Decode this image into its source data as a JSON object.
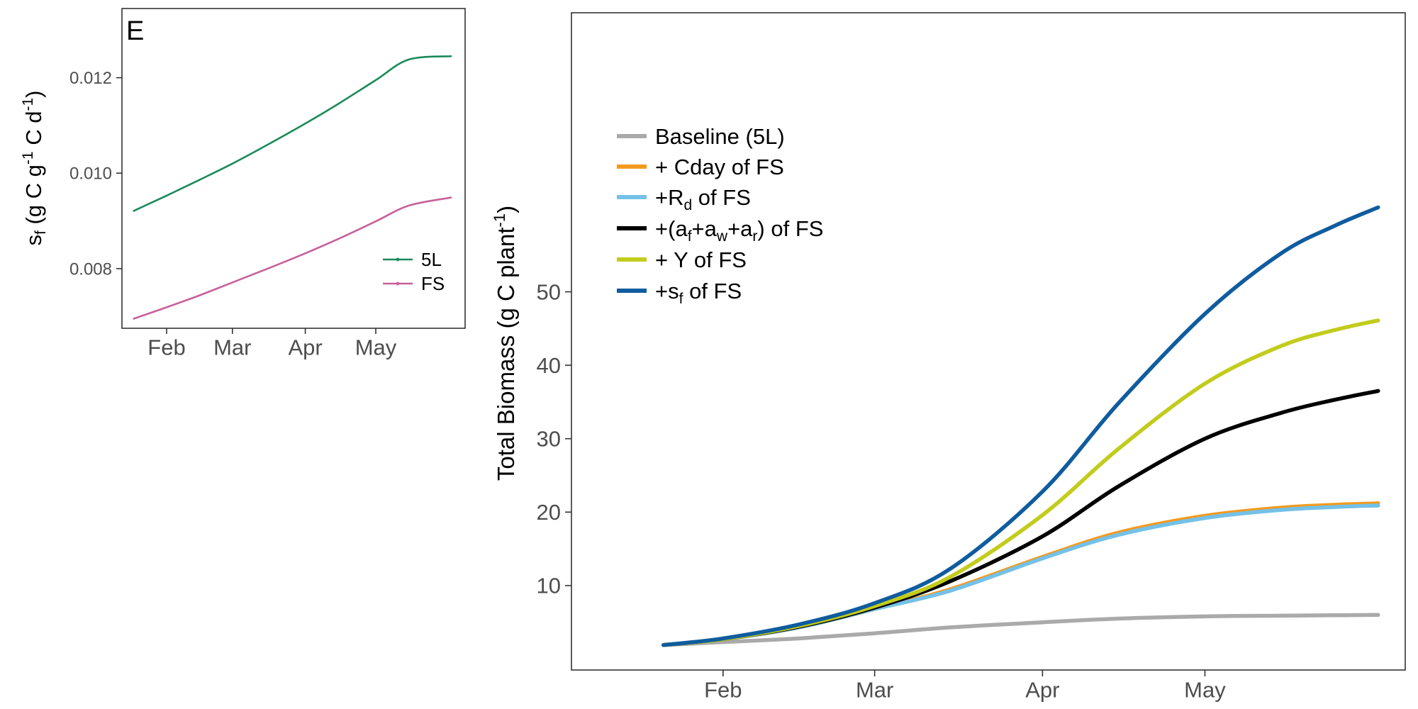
{
  "chart_data": [
    {
      "panel": "E",
      "type": "line",
      "ylabel": {
        "symbol": "s",
        "symbol_sub": "f",
        "unit_main": " (g C g",
        "exp1": "-1",
        "unit_mid": " C d",
        "exp2": "-1",
        "unit_end": ")"
      },
      "x_ticks": [
        {
          "label": "Feb",
          "day": 32
        },
        {
          "label": "Mar",
          "day": 60
        },
        {
          "label": "Apr",
          "day": 91
        },
        {
          "label": "May",
          "day": 121
        }
      ],
      "xlim": [
        13,
        159
      ],
      "ylim": [
        0.00675,
        0.01345
      ],
      "y_ticks": [
        0.008,
        0.01,
        0.012
      ],
      "y_tick_labels": [
        "0.008",
        "0.010",
        "0.012"
      ],
      "legend_position": "bottom-right",
      "grid": false,
      "series": [
        {
          "name": "5L",
          "color": "#1b8a5a",
          "x": [
            18,
            32,
            46,
            60,
            74,
            91,
            105,
            121,
            135,
            153
          ],
          "y": [
            0.00921,
            0.00953,
            0.00986,
            0.0102,
            0.01057,
            0.01104,
            0.01145,
            0.01195,
            0.01238,
            0.01245
          ]
        },
        {
          "name": "FS",
          "color": "#c7609c",
          "x": [
            18,
            32,
            46,
            60,
            74,
            91,
            105,
            121,
            135,
            153
          ],
          "y": [
            0.00695,
            0.00719,
            0.00744,
            0.00771,
            0.00798,
            0.00832,
            0.00862,
            0.00899,
            0.00932,
            0.00949
          ]
        }
      ]
    },
    {
      "type": "line",
      "ylabel": {
        "main": "Total Biomass (g C plant",
        "exp": "-1",
        "end": ")"
      },
      "x_ticks": [
        {
          "label": "Feb",
          "day": 32
        },
        {
          "label": "Mar",
          "day": 60
        },
        {
          "label": "Apr",
          "day": 91
        },
        {
          "label": "May",
          "day": 121
        }
      ],
      "xlim": [
        4,
        158
      ],
      "ylim": [
        -1.5,
        88
      ],
      "y_ticks": [
        10,
        20,
        30,
        40,
        50
      ],
      "y_tick_labels": [
        "10",
        "20",
        "30",
        "40",
        "50"
      ],
      "legend_position": "top-left",
      "grid": false,
      "series": [
        {
          "name": "Baseline (5L)",
          "color": "#aaaaaa",
          "legend": {
            "plain": "Baseline (5L)"
          },
          "x": [
            21,
            32,
            46,
            60,
            74,
            91,
            105,
            121,
            135,
            145,
            153
          ],
          "y": [
            1.9,
            2.3,
            2.8,
            3.5,
            4.3,
            5.0,
            5.5,
            5.8,
            5.9,
            5.95,
            6.0
          ]
        },
        {
          "name": "+ Cday of FS",
          "color": "#f39a1e",
          "legend": {
            "plain": "+ Cday of FS"
          },
          "x": [
            21,
            32,
            46,
            60,
            74,
            91,
            105,
            121,
            135,
            145,
            153
          ],
          "y": [
            1.9,
            2.7,
            4.3,
            6.8,
            9.5,
            13.9,
            17.2,
            19.5,
            20.6,
            21.0,
            21.2
          ]
        },
        {
          "name": "+Rd of FS",
          "color": "#74c1e8",
          "legend": {
            "prefix": "+R",
            "sub": "d",
            "suffix": " of FS"
          },
          "x": [
            21,
            32,
            46,
            60,
            74,
            91,
            105,
            121,
            135,
            145,
            153
          ],
          "y": [
            1.9,
            2.7,
            4.3,
            6.8,
            9.3,
            13.7,
            16.9,
            19.2,
            20.3,
            20.7,
            20.9
          ]
        },
        {
          "name": "+(af+aw+ar) of FS",
          "color": "#000000",
          "legend": {
            "paren_open": "+(",
            "a1": "a",
            "s1": "f",
            "plus1": "+",
            "a2": "a",
            "s2": "w",
            "plus2": "+",
            "a3": "a",
            "s3": "r",
            "paren_close": ")",
            "suffix": " of FS"
          },
          "x": [
            21,
            32,
            46,
            60,
            74,
            91,
            105,
            121,
            135,
            145,
            153
          ],
          "y": [
            1.9,
            2.7,
            4.4,
            7.0,
            10.6,
            16.7,
            23.5,
            30.0,
            33.5,
            35.3,
            36.5
          ]
        },
        {
          "name": "+ Y of FS",
          "color": "#c2cc1c",
          "legend": {
            "plain": "+ Y of FS"
          },
          "x": [
            21,
            32,
            46,
            60,
            74,
            91,
            105,
            121,
            135,
            145,
            153
          ],
          "y": [
            1.9,
            2.7,
            4.5,
            7.2,
            11.2,
            19.6,
            28.6,
            37.5,
            42.6,
            44.8,
            46.1
          ]
        },
        {
          "name": "+sf of FS",
          "color": "#0f5c9e",
          "legend": {
            "prefix": "+s",
            "sub": "f",
            "suffix": " of FS"
          },
          "x": [
            21,
            32,
            46,
            60,
            74,
            91,
            105,
            121,
            135,
            145,
            153
          ],
          "y": [
            1.9,
            2.8,
            4.7,
            7.6,
            12.3,
            22.8,
            34.8,
            47.0,
            55.2,
            59.0,
            61.5
          ]
        }
      ]
    }
  ]
}
